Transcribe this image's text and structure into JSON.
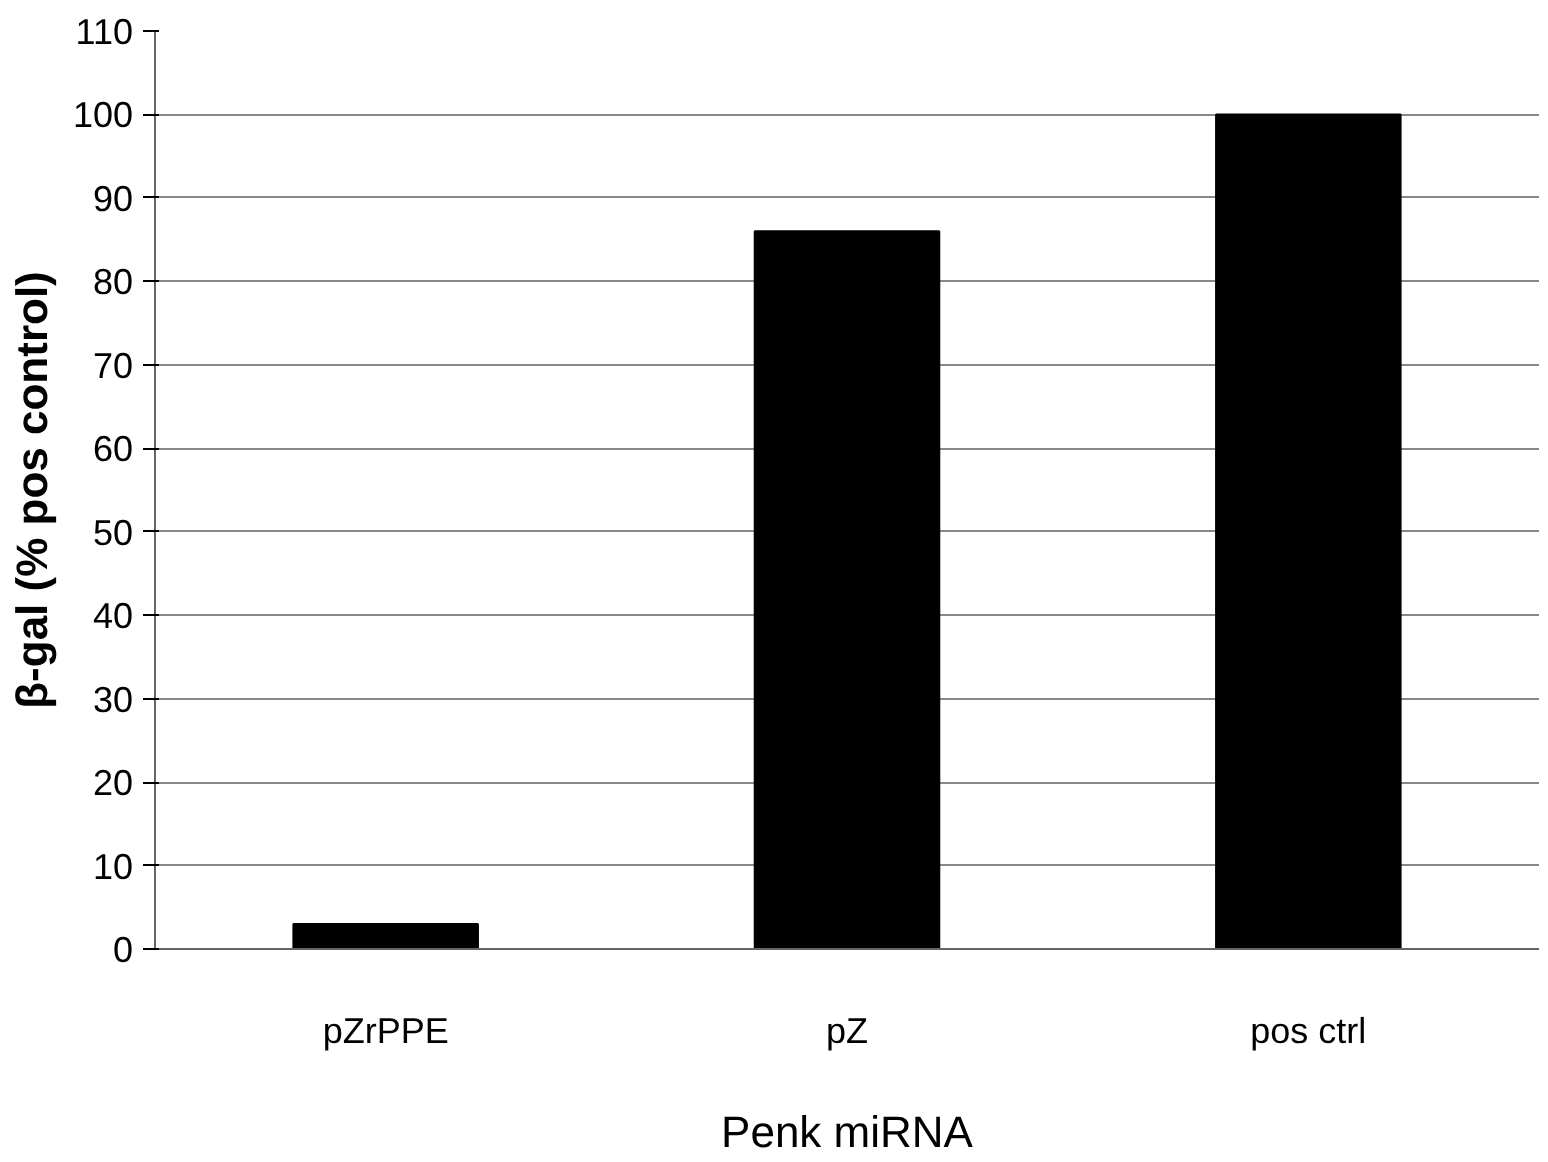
{
  "chart_data": {
    "type": "bar",
    "xlabel": "Penk miRNA",
    "ylabel": "β-gal (% pos control)",
    "categories": [
      "pZrPPE",
      "pZ",
      "pos ctrl"
    ],
    "values": [
      3,
      86,
      100
    ],
    "color": "#000000",
    "ylim": [
      0,
      110
    ],
    "yticks": [
      0,
      10,
      20,
      30,
      40,
      50,
      60,
      70,
      80,
      90,
      100,
      110
    ],
    "grid": "y"
  }
}
